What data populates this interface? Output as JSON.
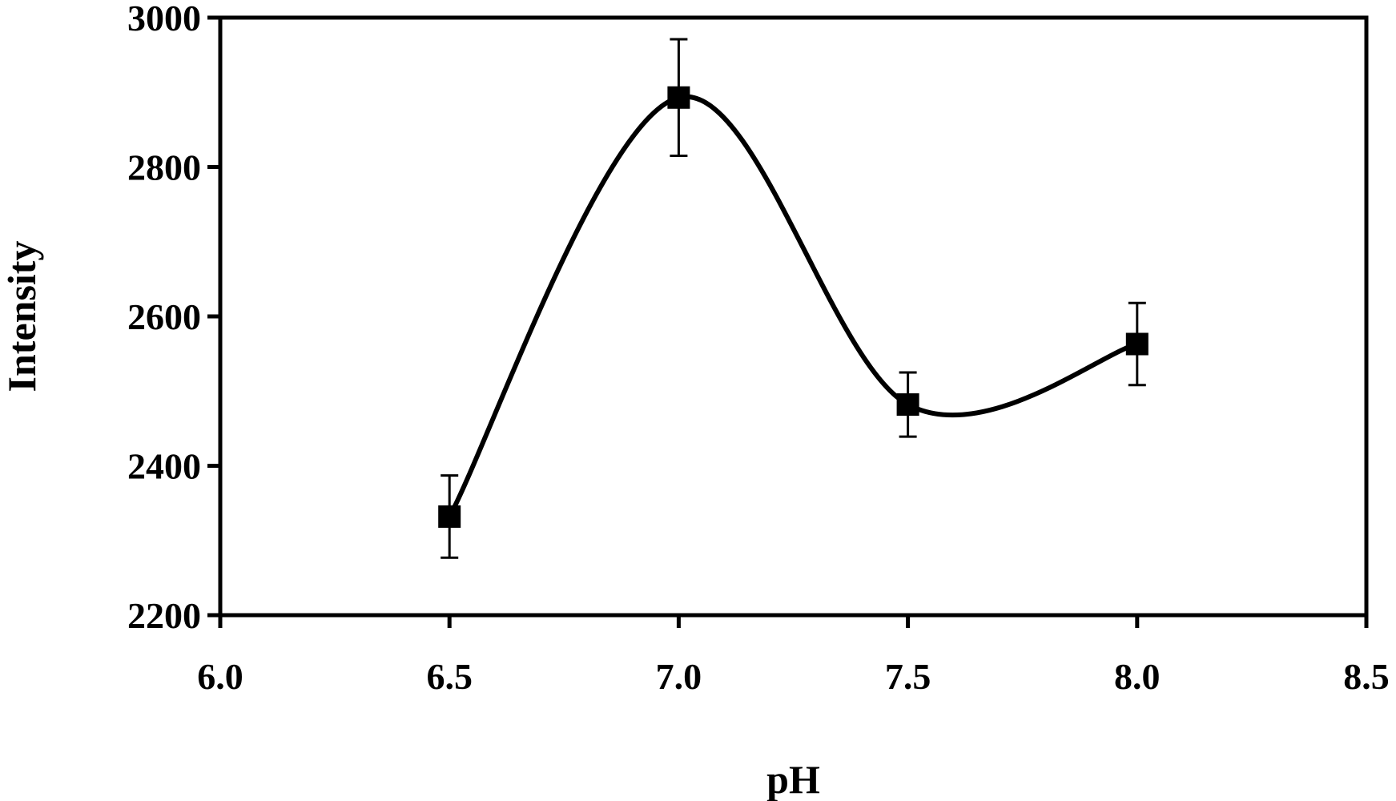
{
  "chart_data": {
    "type": "line",
    "smooth": true,
    "xlabel": "pH",
    "ylabel": "Intensity",
    "xlim": [
      6.0,
      8.5
    ],
    "ylim": [
      2200,
      3000
    ],
    "xticks": [
      "6.0",
      "6.5",
      "7.0",
      "7.5",
      "8.0",
      "8.5"
    ],
    "yticks": [
      "2200",
      "2400",
      "2600",
      "2800",
      "3000"
    ],
    "grid": false,
    "legend": "none",
    "marker": "square",
    "line_color": "#000000",
    "series": [
      {
        "x": [
          6.5,
          7.0,
          7.5,
          8.0
        ],
        "values": [
          2332,
          2893,
          2482,
          2563
        ],
        "error": [
          55,
          78,
          43,
          55
        ]
      }
    ]
  }
}
